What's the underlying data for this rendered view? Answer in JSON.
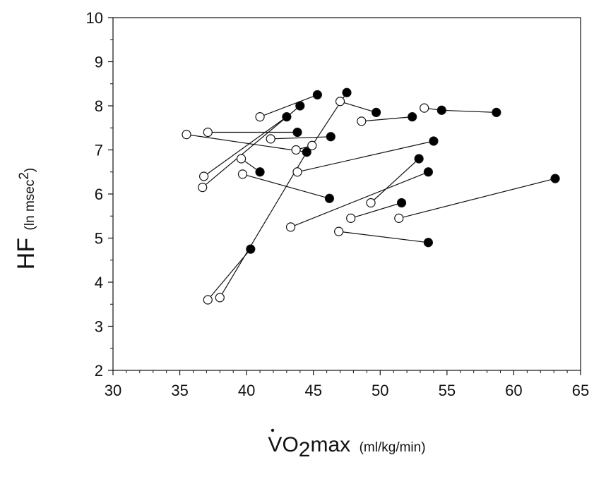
{
  "chart_data": {
    "type": "scatter",
    "xlim": [
      30,
      65
    ],
    "ylim": [
      2,
      10
    ],
    "x_ticks": [
      30,
      35,
      40,
      45,
      50,
      55,
      60,
      65
    ],
    "y_ticks": [
      2,
      3,
      4,
      5,
      6,
      7,
      8,
      9,
      10
    ],
    "x_tick_labels": [
      "30",
      "35",
      "40",
      "45",
      "50",
      "55",
      "60",
      "65"
    ],
    "y_tick_labels": [
      "2",
      "3",
      "4",
      "5",
      "6",
      "7",
      "8",
      "9",
      "10"
    ],
    "ylabel": {
      "main": "HF",
      "unit": "(ln msec",
      "unit_sup": "2",
      "unit_close": ")"
    },
    "xlabel": {
      "v": "V",
      "o": "O",
      "sub": "2",
      "max": "max",
      "unit": "(ml/kg/min)"
    },
    "grid": false,
    "legend": "none",
    "colors": {
      "open_marker": "#ffffff",
      "filled_marker": "#000000",
      "line": "#111111"
    },
    "series": [
      {
        "points": [
          [
            35.5,
            7.35
          ],
          [
            44.5,
            6.95
          ]
        ]
      },
      {
        "points": [
          [
            37.1,
            7.4
          ],
          [
            43.8,
            7.4
          ]
        ]
      },
      {
        "points": [
          [
            36.8,
            6.4
          ],
          [
            43.0,
            7.75
          ]
        ]
      },
      {
        "points": [
          [
            36.7,
            6.15
          ],
          [
            44.0,
            8.0
          ]
        ]
      },
      {
        "points": [
          [
            41.0,
            7.75
          ],
          [
            45.3,
            8.25
          ]
        ]
      },
      {
        "points": [
          [
            41.8,
            7.25
          ],
          [
            46.3,
            7.3
          ]
        ]
      },
      {
        "points": [
          [
            43.7,
            7.0
          ],
          [
            44.9,
            7.1
          ],
          [
            47.5,
            8.3
          ]
        ]
      },
      {
        "points": [
          [
            47.0,
            8.1
          ],
          [
            49.7,
            7.85
          ]
        ]
      },
      {
        "points": [
          [
            48.6,
            7.65
          ],
          [
            52.4,
            7.75
          ]
        ]
      },
      {
        "points": [
          [
            53.3,
            7.95
          ],
          [
            54.6,
            7.9
          ],
          [
            58.7,
            7.85
          ]
        ]
      },
      {
        "points": [
          [
            39.6,
            6.8
          ],
          [
            41.0,
            6.5
          ]
        ]
      },
      {
        "points": [
          [
            39.7,
            6.45
          ],
          [
            46.2,
            5.9
          ]
        ]
      },
      {
        "points": [
          [
            43.8,
            6.5
          ],
          [
            54.0,
            7.2
          ]
        ]
      },
      {
        "points": [
          [
            49.3,
            5.8
          ],
          [
            52.9,
            6.8
          ]
        ]
      },
      {
        "points": [
          [
            43.3,
            5.25
          ],
          [
            53.6,
            6.5
          ]
        ]
      },
      {
        "points": [
          [
            47.8,
            5.45
          ],
          [
            51.6,
            5.8
          ]
        ]
      },
      {
        "points": [
          [
            51.4,
            5.45
          ],
          [
            63.1,
            6.35
          ]
        ]
      },
      {
        "points": [
          [
            46.9,
            5.15
          ],
          [
            53.6,
            4.9
          ]
        ]
      },
      {
        "points": [
          [
            37.1,
            3.6
          ],
          [
            40.3,
            4.75
          ]
        ]
      },
      {
        "points": [
          [
            38.0,
            3.65
          ],
          [
            44.5,
            6.95
          ]
        ]
      }
    ],
    "open_points": [
      [
        35.5,
        7.35
      ],
      [
        37.1,
        7.4
      ],
      [
        36.8,
        6.4
      ],
      [
        36.7,
        6.15
      ],
      [
        41.0,
        7.75
      ],
      [
        41.8,
        7.25
      ],
      [
        43.7,
        7.0
      ],
      [
        44.9,
        7.1
      ],
      [
        47.0,
        8.1
      ],
      [
        48.6,
        7.65
      ],
      [
        53.3,
        7.95
      ],
      [
        39.6,
        6.8
      ],
      [
        39.7,
        6.45
      ],
      [
        43.8,
        6.5
      ],
      [
        49.3,
        5.8
      ],
      [
        43.3,
        5.25
      ],
      [
        47.8,
        5.45
      ],
      [
        51.4,
        5.45
      ],
      [
        46.9,
        5.15
      ],
      [
        37.1,
        3.6
      ],
      [
        38.0,
        3.65
      ]
    ],
    "filled_points": [
      [
        44.5,
        6.95
      ],
      [
        43.8,
        7.4
      ],
      [
        43.0,
        7.75
      ],
      [
        44.0,
        8.0
      ],
      [
        45.3,
        8.25
      ],
      [
        46.3,
        7.3
      ],
      [
        47.5,
        8.3
      ],
      [
        49.7,
        7.85
      ],
      [
        52.4,
        7.75
      ],
      [
        54.6,
        7.9
      ],
      [
        58.7,
        7.85
      ],
      [
        41.0,
        6.5
      ],
      [
        46.2,
        5.9
      ],
      [
        54.0,
        7.2
      ],
      [
        52.9,
        6.8
      ],
      [
        53.6,
        6.5
      ],
      [
        51.6,
        5.8
      ],
      [
        63.1,
        6.35
      ],
      [
        53.6,
        4.9
      ],
      [
        40.3,
        4.75
      ]
    ]
  }
}
